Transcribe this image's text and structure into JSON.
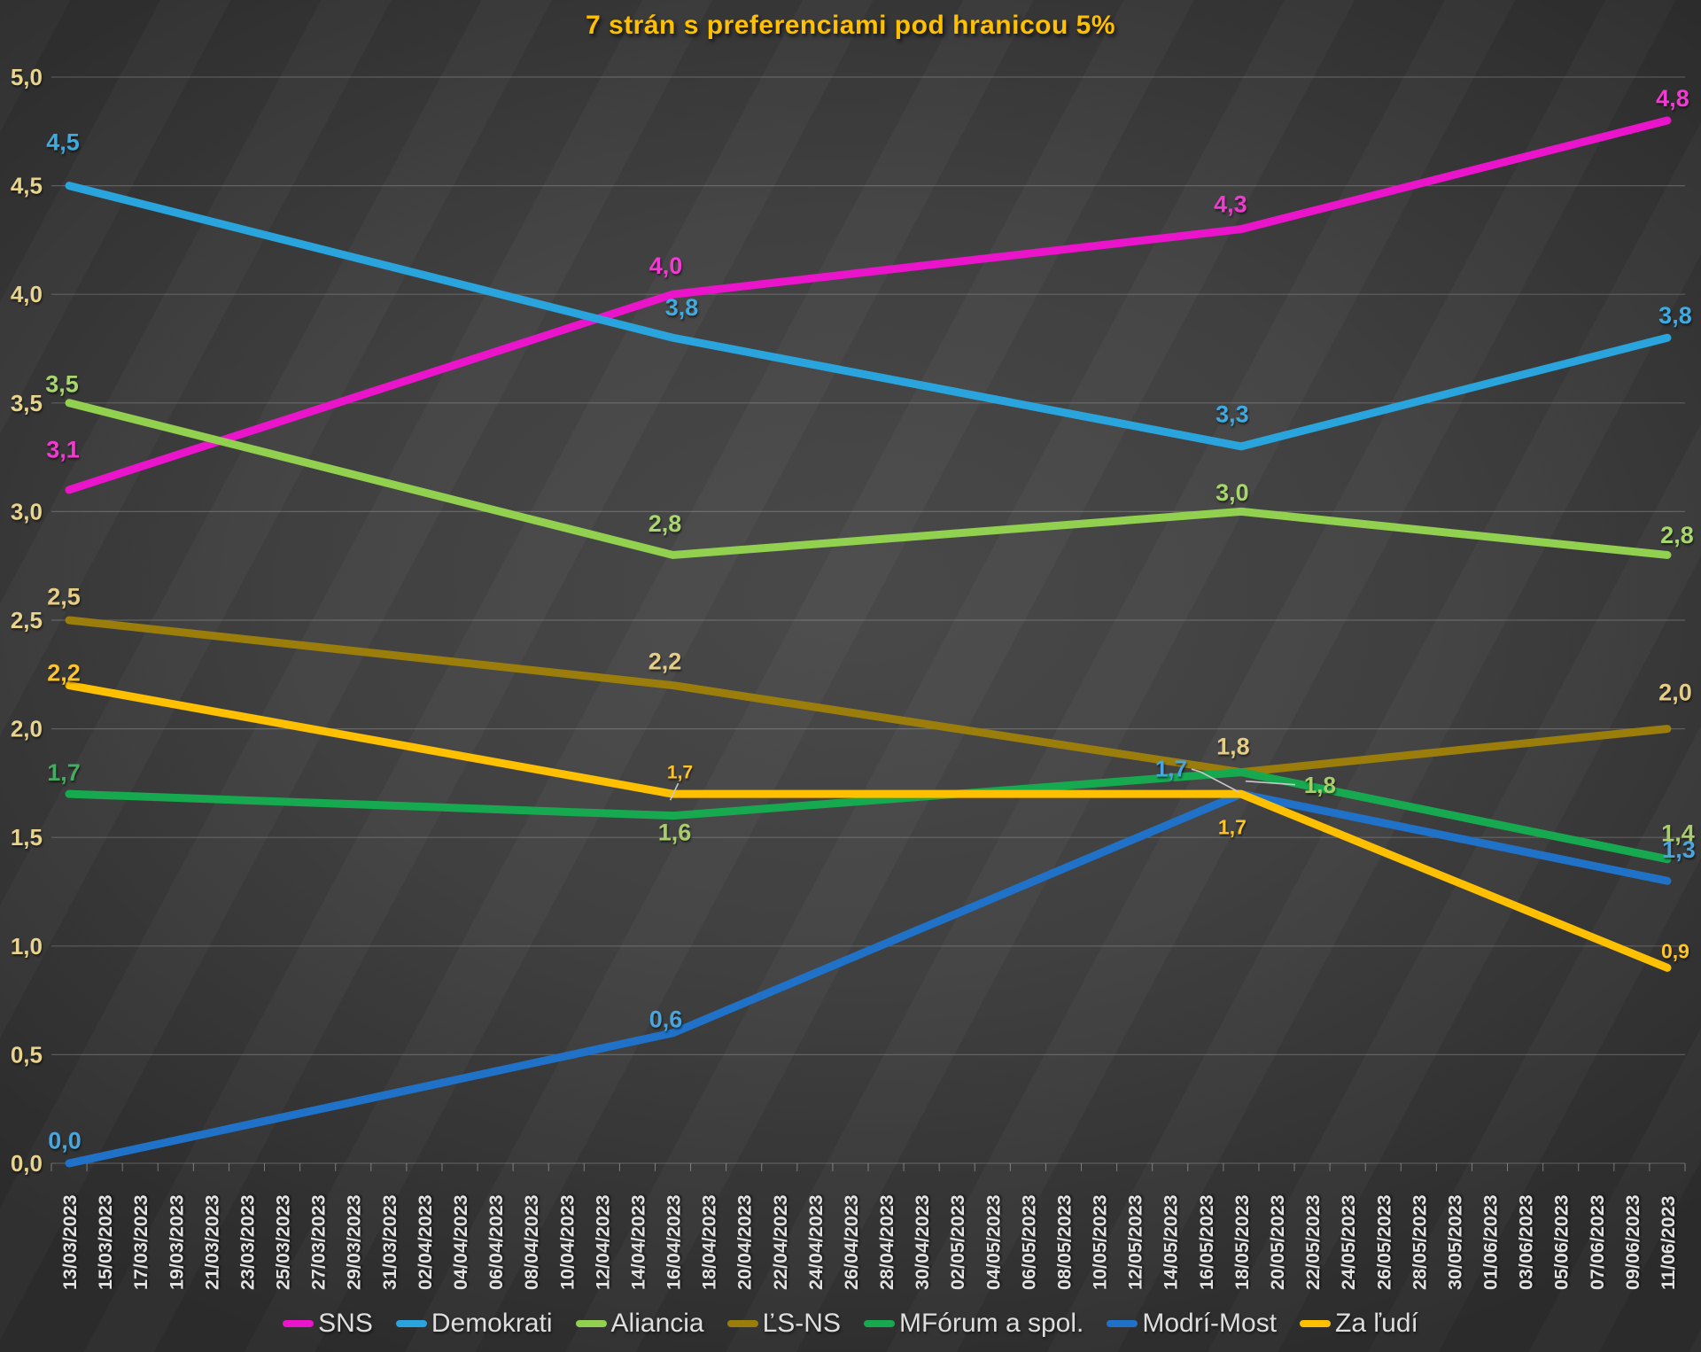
{
  "title": {
    "text": "7 strán s preferenciami pod hranicou 5%",
    "color": "#FFC000"
  },
  "y_axis": {
    "tick_labels": [
      "5,0",
      "4,5",
      "4,0",
      "3,5",
      "3,0",
      "2,5",
      "2,0",
      "1,5",
      "1,0",
      "0,5",
      "0,0"
    ],
    "tick_values": [
      5.0,
      4.5,
      4.0,
      3.5,
      3.0,
      2.5,
      2.0,
      1.5,
      1.0,
      0.5,
      0.0
    ],
    "color": "#E8D48C"
  },
  "x_axis": {
    "color": "#E2E2E2"
  },
  "chart_data": {
    "type": "line",
    "title": "7 strán s preferenciami pod hranicou 5%",
    "ylim": [
      0,
      5
    ],
    "y_tick_step": 0.5,
    "grid": true,
    "legend_position": "bottom",
    "categories": [
      "13/03/2023",
      "15/03/2023",
      "17/03/2023",
      "19/03/2023",
      "21/03/2023",
      "23/03/2023",
      "25/03/2023",
      "27/03/2023",
      "29/03/2023",
      "31/03/2023",
      "02/04/2023",
      "04/04/2023",
      "06/04/2023",
      "08/04/2023",
      "10/04/2023",
      "12/04/2023",
      "14/04/2023",
      "16/04/2023",
      "18/04/2023",
      "20/04/2023",
      "22/04/2023",
      "24/04/2023",
      "26/04/2023",
      "28/04/2023",
      "30/04/2023",
      "02/05/2023",
      "04/05/2023",
      "06/05/2023",
      "08/05/2023",
      "10/05/2023",
      "12/05/2023",
      "14/05/2023",
      "16/05/2023",
      "18/05/2023",
      "20/05/2023",
      "22/05/2023",
      "24/05/2023",
      "26/05/2023",
      "28/05/2023",
      "30/05/2023",
      "01/06/2023",
      "03/06/2023",
      "05/06/2023",
      "07/06/2023",
      "09/06/2023",
      "11/06/2023"
    ],
    "point_indices": [
      0,
      17,
      33,
      45
    ],
    "point_dates": [
      "13/03/2023",
      "16/04/2023",
      "18/05/2023",
      "11/06/2023"
    ],
    "series": [
      {
        "name": "SNS",
        "color": "#EA14CA",
        "label_color": "#F23AD2",
        "values": [
          3.1,
          4.0,
          4.3,
          4.8
        ],
        "labels": [
          "3,1",
          "4,0",
          "4,3",
          "4,8"
        ]
      },
      {
        "name": "Demokrati",
        "color": "#29A4DD",
        "label_color": "#3FAADF",
        "values": [
          4.5,
          3.8,
          3.3,
          3.8
        ],
        "labels": [
          "4,5",
          "3,8",
          "3,3",
          "3,8"
        ]
      },
      {
        "name": "Aliancia",
        "color": "#92D050",
        "label_color": "#A8D66E",
        "values": [
          3.5,
          2.8,
          3.0,
          2.8
        ],
        "labels": [
          "3,5",
          "2,8",
          "3,0",
          "2,8"
        ]
      },
      {
        "name": "ĽS-NS",
        "color": "#9A7D0B",
        "label_color": "#E5CD86",
        "values": [
          2.5,
          2.2,
          1.8,
          2.0
        ],
        "labels": [
          "2,5",
          "2,2",
          "1,8",
          "2,0"
        ]
      },
      {
        "name": "MFórum a spol.",
        "color": "#17A94F",
        "label_color": "#A9CC6C",
        "label_colors": [
          "#44AC60",
          "#A9CC6C",
          "#A9CC6C",
          "#A9CC6C"
        ],
        "values": [
          1.7,
          1.6,
          1.8,
          1.4
        ],
        "labels": [
          "1,7",
          "1,6",
          "1,8",
          "1,4"
        ]
      },
      {
        "name": "Modrí-Most",
        "color": "#1F72C8",
        "label_color": "#49A5DD",
        "values": [
          0.0,
          0.6,
          1.7,
          1.3
        ],
        "labels": [
          "0,0",
          "0,6",
          "1,7",
          "1,3"
        ]
      },
      {
        "name": "Za ľudí",
        "color": "#FFC000",
        "label_color": "#FFC428",
        "values": [
          2.2,
          1.7,
          1.7,
          0.9
        ],
        "labels": [
          "2,2",
          "1,7",
          "1,7",
          "0,9"
        ]
      }
    ]
  },
  "colors": {
    "background_center": "#4B4B4B",
    "background_edge": "#2C2C2C",
    "gridline": "rgba(255,255,255,0.20)",
    "axis_tick": "rgba(255,255,255,0.35)",
    "leader_line": "#C9C9C9"
  }
}
